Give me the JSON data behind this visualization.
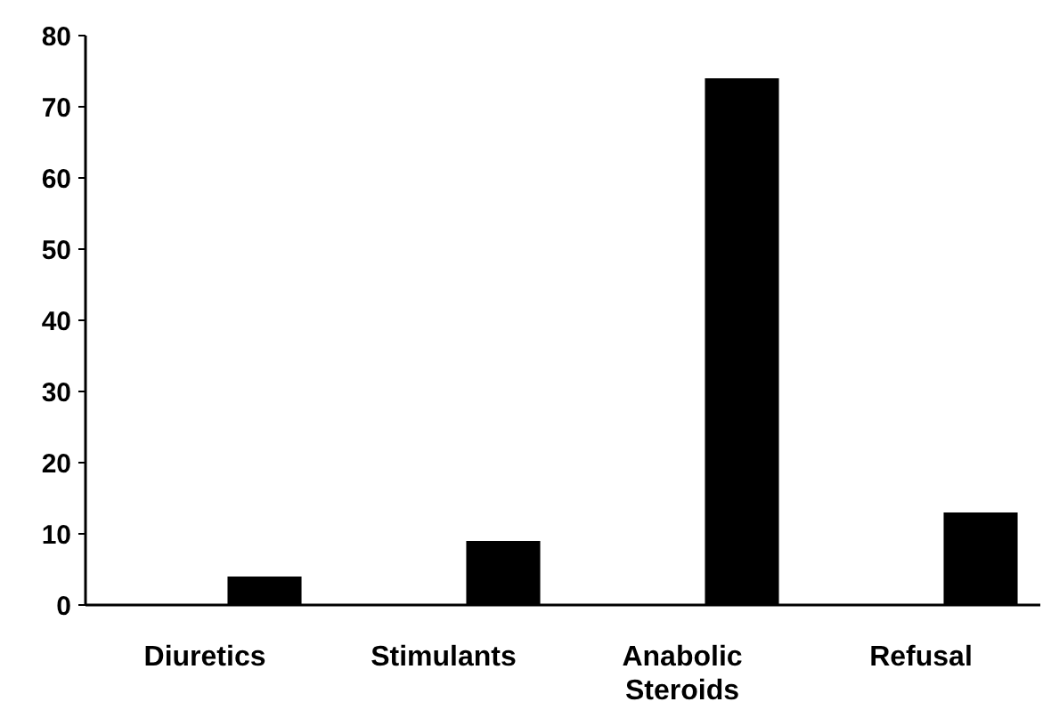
{
  "chart_data": {
    "type": "bar",
    "categories": [
      "Diuretics",
      "Stimulants",
      "Anabolic Steroids",
      "Refusal"
    ],
    "values": [
      4,
      9,
      74,
      13
    ],
    "color": "#000000",
    "ylim": [
      0,
      80
    ],
    "yticks": [
      0,
      10,
      20,
      30,
      40,
      50,
      60,
      70,
      80
    ],
    "grid": false
  }
}
